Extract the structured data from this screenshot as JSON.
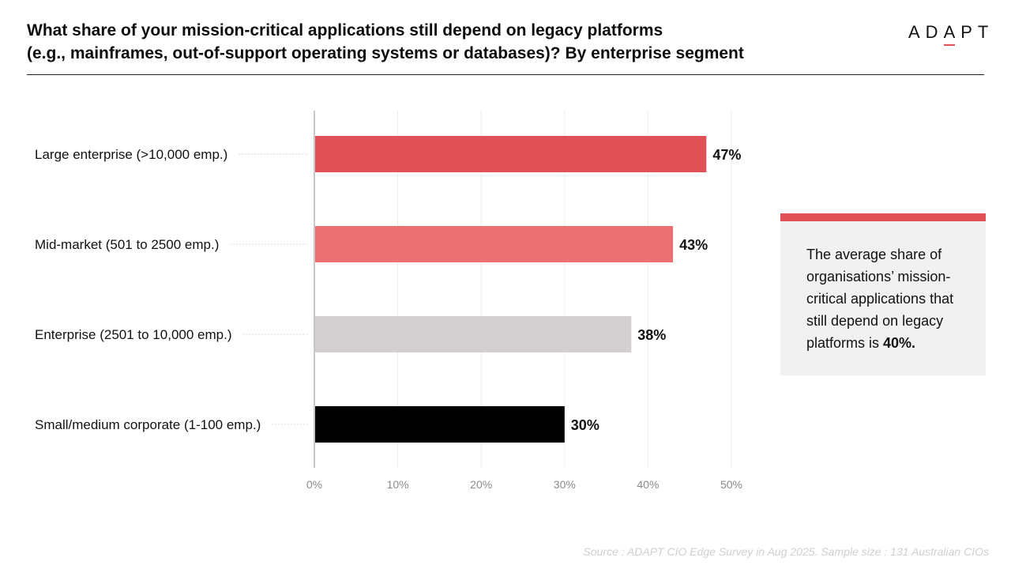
{
  "header": {
    "title_line1": "What share of your mission-critical applications still depend on legacy platforms",
    "title_line2": "(e.g., mainframes, out-of-support operating systems or databases)? By enterprise segment",
    "logo_pre": "AD",
    "logo_accent": "A",
    "logo_post": "PT"
  },
  "chart_data": {
    "type": "bar",
    "orientation": "horizontal",
    "title": "What share of your mission-critical applications still depend on legacy platforms (e.g., mainframes, out-of-support operating systems or databases)? By enterprise segment",
    "categories": [
      "Large enterprise (>10,000 emp.)",
      "Mid-market (501 to 2500 emp.)",
      "Enterprise (2501 to 10,000 emp.)",
      "Small/medium corporate (1-100 emp.)"
    ],
    "values": [
      47,
      43,
      38,
      30
    ],
    "value_labels": [
      "47%",
      "43%",
      "38%",
      "30%"
    ],
    "colors": [
      "#e05257",
      "#ec6f71",
      "#d3cfd0",
      "#000000"
    ],
    "xlim": [
      0,
      50
    ],
    "xticks": [
      0,
      10,
      20,
      30,
      40,
      50
    ],
    "xtick_labels": [
      "0%",
      "10%",
      "20%",
      "30%",
      "40%",
      "50%"
    ],
    "xlabel": "",
    "ylabel": "",
    "grid": true
  },
  "callout": {
    "text": "The average share of organisations’ mission-critical applications that still depend on legacy platforms is ",
    "highlight": "40%.",
    "accent_color": "#e05257"
  },
  "footer": {
    "source": "Source : ADAPT CIO Edge Survey in Aug 2025. Sample size : 131 Australian CIOs"
  }
}
